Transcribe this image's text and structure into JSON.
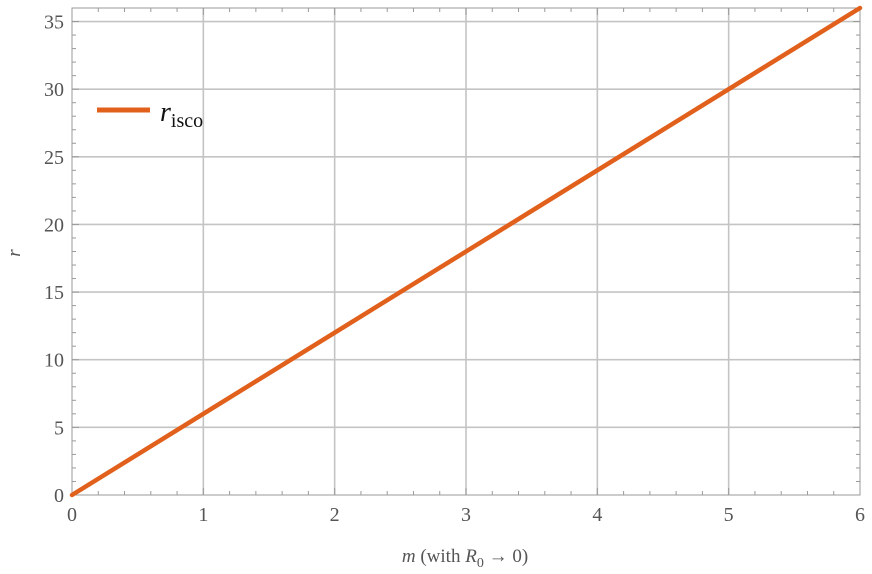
{
  "chart_data": {
    "type": "line",
    "title": "",
    "xlabel": "m (with R0 → 0)",
    "ylabel": "r",
    "xlim": [
      0,
      6
    ],
    "ylim": [
      0,
      36
    ],
    "xticks": [
      0,
      1,
      2,
      3,
      4,
      5,
      6
    ],
    "yticks": [
      0,
      5,
      10,
      15,
      20,
      25,
      30,
      35
    ],
    "grid": true,
    "legend_position": "top-left",
    "series": [
      {
        "name": "r_isco",
        "color": "#e0601c",
        "x": [
          0,
          1,
          2,
          3,
          4,
          5,
          6
        ],
        "y": [
          0,
          6,
          12,
          18,
          24,
          30,
          36
        ]
      }
    ]
  }
}
